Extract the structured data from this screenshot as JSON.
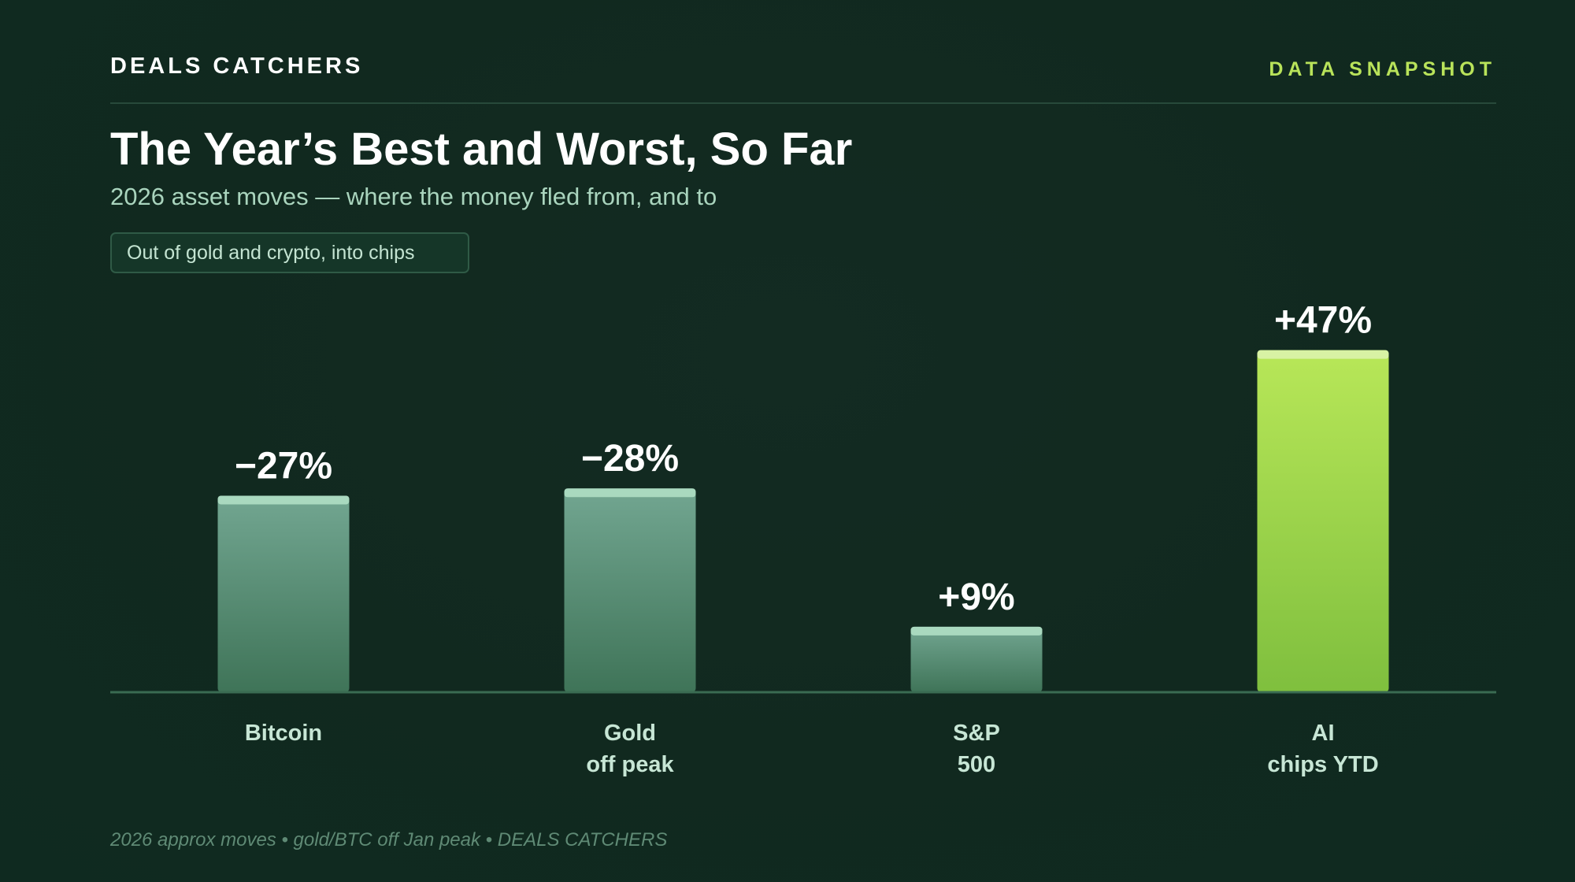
{
  "header": {
    "brand": "DEALS CATCHERS",
    "tag": "DATA SNAPSHOT"
  },
  "title": "The Year’s Best and Worst, So Far",
  "subtitle": "2026 asset moves — where the money fled from, and to",
  "callout": "Out of gold and crypto, into chips",
  "footer": "2026 approx moves • gold/BTC off Jan peak • DEALS CATCHERS",
  "colors": {
    "background": "#11291f",
    "accent": "#b9e35a",
    "bar_muted_top": "#72a691",
    "bar_muted_bottom": "#3f7458",
    "bar_muted_cap": "#a9d9bf",
    "bar_highlight_top": "#b8e758",
    "bar_highlight_bottom": "#7fbf3e",
    "bar_highlight_cap": "#d8f2a4",
    "category_label": "#c7e6d5"
  },
  "chart_data": {
    "type": "bar",
    "categories": [
      [
        "Bitcoin"
      ],
      [
        "Gold",
        "off peak"
      ],
      [
        "S&P",
        "500"
      ],
      [
        "AI",
        "chips YTD"
      ]
    ],
    "values": [
      -27,
      -28,
      9,
      47
    ],
    "data_labels": [
      "−27%",
      "−28%",
      "+9%",
      "+47%"
    ],
    "highlight_index": 3,
    "bar_height_basis": "magnitude",
    "unit": "%",
    "ylim": [
      0,
      58
    ],
    "grid": false,
    "legend": "none"
  }
}
